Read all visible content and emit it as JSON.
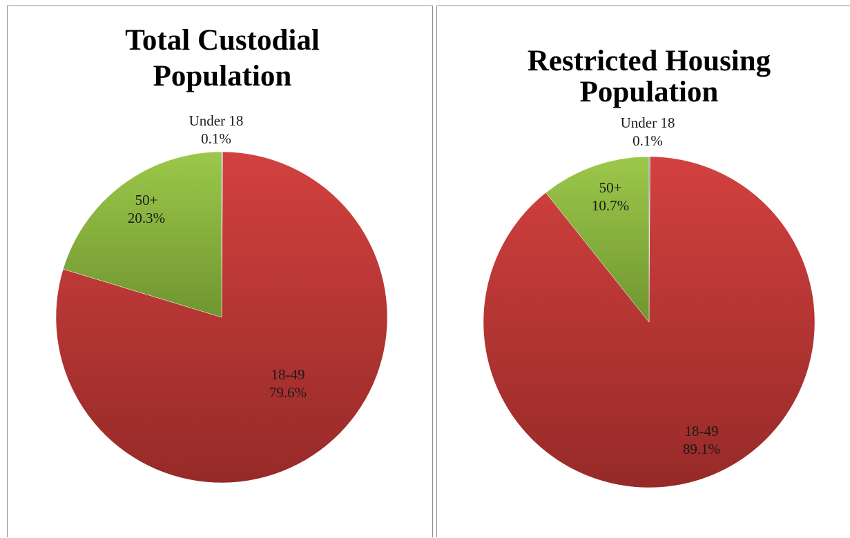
{
  "chart_data": [
    {
      "type": "pie",
      "title_lines": [
        "Total Custodial",
        "Population"
      ],
      "slices": [
        {
          "name": "Under 18",
          "value": 0.1,
          "label": "0.1%",
          "color": "#4f81bd"
        },
        {
          "name": "18-49",
          "value": 79.6,
          "label": "79.6%",
          "color": "#c0504d"
        },
        {
          "name": "50+",
          "value": 20.3,
          "label": "20.3%",
          "color": "#9bbb59"
        }
      ]
    },
    {
      "type": "pie",
      "title_lines": [
        "Restricted Housing",
        "Population"
      ],
      "slices": [
        {
          "name": "Under 18",
          "value": 0.1,
          "label": "0.1%",
          "color": "#4f81bd"
        },
        {
          "name": "18-49",
          "value": 89.1,
          "label": "89.1%",
          "color": "#c0504d"
        },
        {
          "name": "50+",
          "value": 10.7,
          "label": "10.7%",
          "color": "#9bbb59"
        }
      ]
    }
  ]
}
